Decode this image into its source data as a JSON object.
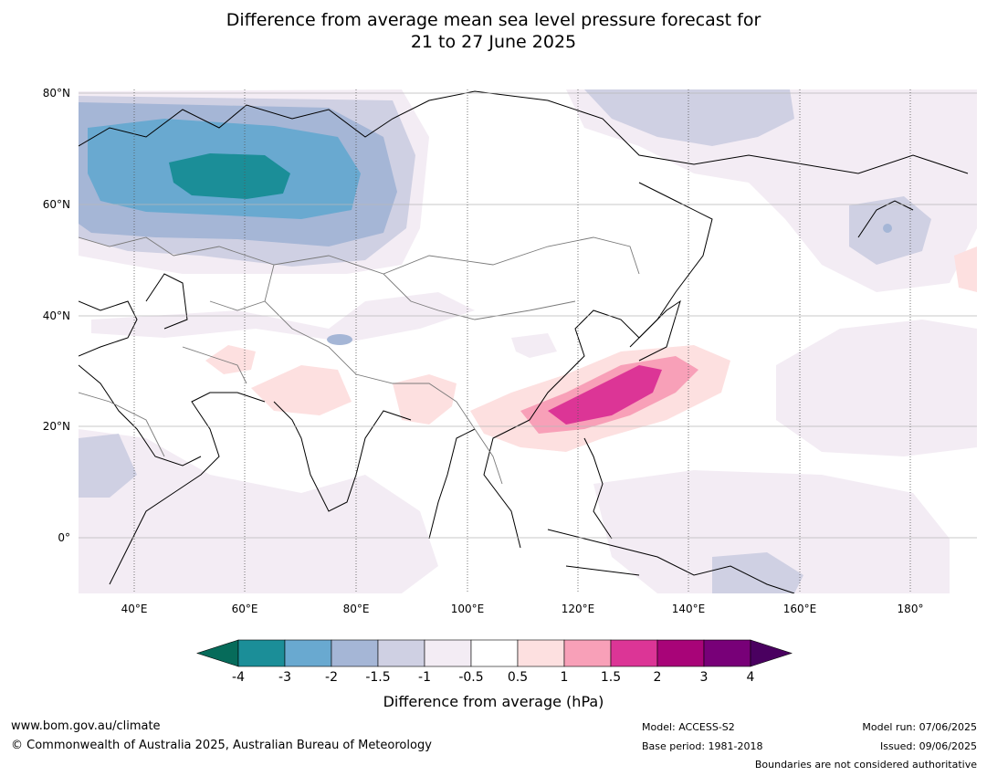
{
  "title": {
    "line1": "Difference from average mean sea level pressure forecast for",
    "line2": "21 to 27 June 2025"
  },
  "map": {
    "lat_labels": [
      "80°N",
      "60°N",
      "40°N",
      "20°N",
      "0°"
    ],
    "lon_labels": [
      "40°E",
      "60°E",
      "80°E",
      "100°E",
      "120°E",
      "140°E",
      "160°E",
      "180°"
    ],
    "extent": {
      "lon": [
        30,
        190
      ],
      "lat": [
        -10,
        81
      ]
    },
    "anomaly_regions": [
      {
        "name": "North-west Russia low",
        "level": "-4 to -3 hPa"
      },
      {
        "name": "East China Sea / Ryukyu high",
        "level": "1.5 to 2 hPa"
      },
      {
        "name": "Pacific north of Japan low",
        "level": "-1.5 to -1 hPa"
      }
    ]
  },
  "colorbar": {
    "ticks": [
      "-4",
      "-3",
      "-2",
      "-1.5",
      "-1",
      "-0.5",
      "0.5",
      "1",
      "1.5",
      "2",
      "3",
      "4"
    ],
    "colors": [
      "#066b5a",
      "#1b8e98",
      "#69a9d0",
      "#a5b6d6",
      "#cfd0e3",
      "#f3ecf4",
      "#ffffff",
      "#fde0e0",
      "#f8a0b8",
      "#dc3596",
      "#a80478",
      "#780078",
      "#4a0060"
    ],
    "label": "Difference from average (hPa)"
  },
  "footer": {
    "website": "www.bom.gov.au/climate",
    "copyright": "© Commonwealth of Australia 2025, Australian Bureau of Meteorology",
    "model": "Model: ACCESS-S2",
    "base_period": "Base period: 1981-2018",
    "model_run": "Model run: 07/06/2025",
    "issued": "Issued: 09/06/2025",
    "boundaries": "Boundaries are not considered authoritative"
  }
}
